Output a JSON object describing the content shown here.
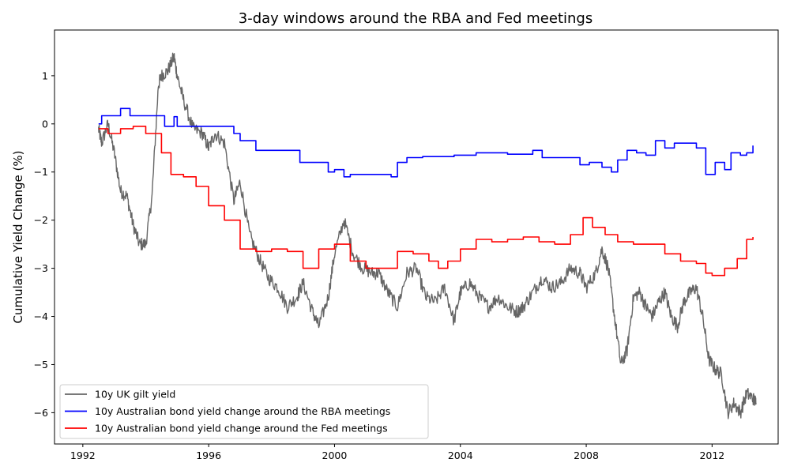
{
  "chart_data": {
    "type": "line",
    "title": "3-day windows around the RBA and Fed meetings",
    "xlabel": "",
    "ylabel": "Cumulative Yield Change (%)",
    "xlim": [
      1991.1,
      2014.1
    ],
    "ylim": [
      -6.65,
      1.95
    ],
    "x_ticks": [
      1992,
      1996,
      2000,
      2004,
      2008,
      2012
    ],
    "y_ticks": [
      -6,
      -5,
      -4,
      -3,
      -2,
      -1,
      0,
      1
    ],
    "y_tick_labels": [
      "−6",
      "−5",
      "−4",
      "−3",
      "−2",
      "−1",
      "0",
      "1"
    ],
    "grid": false,
    "legend_position": "lower-left",
    "series": [
      {
        "name": "10y UK gilt yield",
        "color": "#666666",
        "style": "noisy",
        "x": [
          1992.5,
          1992.6,
          1992.8,
          1993.0,
          1993.2,
          1993.4,
          1993.6,
          1993.8,
          1994.0,
          1994.2,
          1994.4,
          1994.5,
          1994.7,
          1994.9,
          1995.0,
          1995.2,
          1995.5,
          1995.8,
          1996.0,
          1996.2,
          1996.5,
          1996.8,
          1997.0,
          1997.3,
          1997.6,
          1997.9,
          1998.2,
          1998.5,
          1998.8,
          1999.0,
          1999.3,
          1999.5,
          1999.8,
          2000.0,
          2000.3,
          2000.6,
          2000.9,
          2001.2,
          2001.4,
          2001.7,
          2002.0,
          2002.3,
          2002.6,
          2002.9,
          2003.2,
          2003.5,
          2003.8,
          2004.0,
          2004.3,
          2004.6,
          2004.9,
          2005.2,
          2005.5,
          2005.8,
          2006.0,
          2006.3,
          2006.6,
          2006.9,
          2007.2,
          2007.5,
          2007.8,
          2008.0,
          2008.3,
          2008.5,
          2008.7,
          2008.9,
          2009.1,
          2009.3,
          2009.5,
          2009.7,
          2009.9,
          2010.1,
          2010.3,
          2010.5,
          2010.7,
          2010.9,
          2011.1,
          2011.3,
          2011.5,
          2011.7,
          2011.9,
          2012.1,
          2012.3,
          2012.5,
          2012.7,
          2012.9,
          2013.1,
          2013.3,
          2013.4
        ],
        "y": [
          -0.1,
          -0.4,
          0.0,
          -0.6,
          -1.4,
          -1.5,
          -2.1,
          -2.5,
          -2.5,
          -1.5,
          0.8,
          1.0,
          1.1,
          1.4,
          1.0,
          0.5,
          -0.1,
          -0.2,
          -0.5,
          -0.2,
          -0.4,
          -1.6,
          -1.2,
          -2.3,
          -2.8,
          -3.2,
          -3.4,
          -3.8,
          -3.6,
          -3.3,
          -3.9,
          -4.2,
          -3.6,
          -2.7,
          -2.0,
          -2.7,
          -3.0,
          -3.1,
          -3.1,
          -3.5,
          -3.8,
          -3.1,
          -3.0,
          -3.6,
          -3.7,
          -3.4,
          -4.1,
          -3.5,
          -3.3,
          -3.6,
          -3.8,
          -3.6,
          -3.8,
          -3.9,
          -3.8,
          -3.5,
          -3.2,
          -3.4,
          -3.3,
          -3.0,
          -3.1,
          -3.4,
          -3.1,
          -2.6,
          -3.0,
          -4.0,
          -5.0,
          -4.7,
          -3.6,
          -3.5,
          -3.8,
          -4.0,
          -3.7,
          -3.5,
          -4.0,
          -4.2,
          -3.7,
          -3.5,
          -3.4,
          -4.0,
          -4.9,
          -5.1,
          -5.2,
          -6.0,
          -5.8,
          -6.0,
          -5.6,
          -5.7,
          -5.8
        ]
      },
      {
        "name": "10y Australian bond yield change around the RBA meetings",
        "color": "#0000ff",
        "style": "step",
        "x": [
          1992.5,
          1992.6,
          1993.2,
          1993.5,
          1994.2,
          1994.3,
          1994.6,
          1994.9,
          1995.0,
          1996.0,
          1996.6,
          1996.8,
          1997.0,
          1997.5,
          1998.9,
          1999.8,
          2000.0,
          2000.3,
          2000.5,
          2001.0,
          2001.5,
          2001.8,
          2002.0,
          2002.3,
          2002.8,
          2003.8,
          2004.5,
          2005.5,
          2006.3,
          2006.6,
          2007.2,
          2007.8,
          2008.1,
          2008.5,
          2008.8,
          2009.0,
          2009.3,
          2009.6,
          2009.9,
          2010.2,
          2010.5,
          2010.8,
          2011.0,
          2011.3,
          2011.5,
          2011.8,
          2012.1,
          2012.4,
          2012.6,
          2012.9,
          2013.1,
          2013.3
        ],
        "y": [
          0.0,
          0.17,
          0.32,
          0.17,
          0.17,
          0.17,
          -0.05,
          0.15,
          -0.05,
          -0.05,
          -0.05,
          -0.2,
          -0.35,
          -0.55,
          -0.8,
          -1.0,
          -0.95,
          -1.1,
          -1.05,
          -1.05,
          -1.05,
          -1.1,
          -0.8,
          -0.7,
          -0.68,
          -0.65,
          -0.6,
          -0.63,
          -0.55,
          -0.7,
          -0.7,
          -0.85,
          -0.8,
          -0.9,
          -1.0,
          -0.75,
          -0.55,
          -0.6,
          -0.65,
          -0.35,
          -0.5,
          -0.4,
          -0.4,
          -0.4,
          -0.5,
          -1.05,
          -0.8,
          -0.95,
          -0.6,
          -0.65,
          -0.6,
          -0.45
        ]
      },
      {
        "name": "10y Australian bond yield change around the Fed meetings",
        "color": "#ff0000",
        "style": "step",
        "x": [
          1992.5,
          1992.8,
          1993.2,
          1993.6,
          1994.0,
          1994.5,
          1994.8,
          1995.2,
          1995.6,
          1996.0,
          1996.5,
          1997.0,
          1997.5,
          1998.0,
          1998.5,
          1999.0,
          1999.5,
          2000.0,
          2000.5,
          2001.0,
          2001.5,
          2002.0,
          2002.5,
          2003.0,
          2003.3,
          2003.6,
          2004.0,
          2004.5,
          2005.0,
          2005.5,
          2006.0,
          2006.5,
          2007.0,
          2007.5,
          2007.9,
          2008.2,
          2008.6,
          2009.0,
          2009.5,
          2010.0,
          2010.5,
          2011.0,
          2011.5,
          2011.8,
          2012.0,
          2012.4,
          2012.8,
          2013.1,
          2013.3
        ],
        "y": [
          -0.1,
          -0.2,
          -0.1,
          -0.05,
          -0.2,
          -0.6,
          -1.05,
          -1.1,
          -1.3,
          -1.7,
          -2.0,
          -2.6,
          -2.65,
          -2.6,
          -2.65,
          -3.0,
          -2.6,
          -2.5,
          -2.85,
          -3.0,
          -3.0,
          -2.65,
          -2.7,
          -2.85,
          -3.0,
          -2.85,
          -2.6,
          -2.4,
          -2.45,
          -2.4,
          -2.35,
          -2.45,
          -2.5,
          -2.3,
          -1.95,
          -2.15,
          -2.3,
          -2.45,
          -2.5,
          -2.5,
          -2.7,
          -2.85,
          -2.9,
          -3.1,
          -3.15,
          -3.0,
          -2.8,
          -2.4,
          -2.35
        ]
      }
    ]
  }
}
